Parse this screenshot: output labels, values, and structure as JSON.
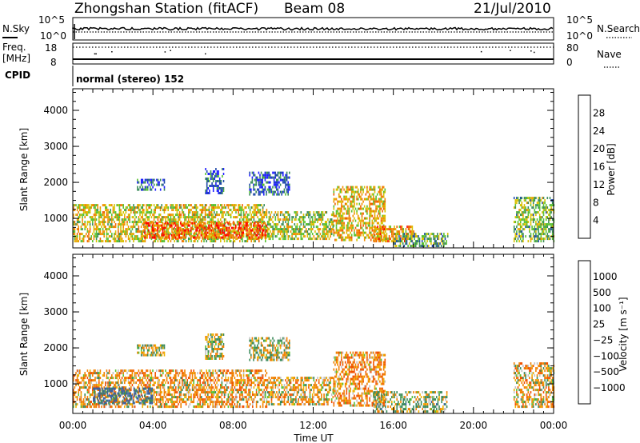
{
  "header": {
    "station": "Zhongshan Station (fitACF)",
    "beam": "Beam 08",
    "date": "21/Jul/2010"
  },
  "noise_panel": {
    "left_label": "N.Sky",
    "right_label": "N.Search",
    "left_ticks": [
      "10^5",
      "10^0"
    ],
    "right_ticks": [
      "10^5",
      "10^0"
    ]
  },
  "freq_panel": {
    "left_label_1": "Freq.",
    "left_label_2": "[MHz]",
    "right_label": "Nave",
    "left_ticks": [
      "18",
      "8"
    ],
    "right_ticks": [
      "80",
      "0"
    ]
  },
  "cpid": {
    "label": "CPID",
    "text": "normal (stereo) 152"
  },
  "power_panel": {
    "ylabel": "Slant Range [km]",
    "yticks": [
      "1000",
      "2000",
      "3000",
      "4000"
    ],
    "colorbar_label": "Power [dB]",
    "colorbar_ticks": [
      "4",
      "8",
      "12",
      "16",
      "20",
      "24",
      "28"
    ],
    "colorbar_colors": [
      "#2020ff",
      "#1e48a8",
      "#3a8a5a",
      "#58c030",
      "#d8c000",
      "#f09000",
      "#f06000",
      "#ff0000"
    ]
  },
  "velocity_panel": {
    "ylabel": "Slant Range [km]",
    "yticks": [
      "1000",
      "2000",
      "3000",
      "4000"
    ],
    "colorbar_label": "Velocity [m s⁻¹]",
    "colorbar_ticks": [
      "1000",
      "500",
      "100",
      "25",
      "−25",
      "−100",
      "−500",
      "−1000"
    ],
    "colorbar_colors": [
      "#2040c8",
      "#3a60a0",
      "#3a8a5a",
      "#58c030",
      "#c0c0c0",
      "#f0b000",
      "#f08000",
      "#f05000",
      "#ff0000"
    ]
  },
  "x_axis": {
    "label": "Time UT",
    "ticks": [
      "00:00",
      "04:00",
      "08:00",
      "12:00",
      "16:00",
      "20:00",
      "00:00"
    ]
  },
  "chart_data": [
    {
      "type": "heatmap",
      "panel": "power",
      "x_unit": "hours UT",
      "y_unit": "km",
      "xlim": [
        0,
        24
      ],
      "ylim": [
        180,
        4600
      ],
      "zlim": [
        0,
        32
      ],
      "regions": [
        {
          "t": [
            0.0,
            9.7
          ],
          "r": [
            400,
            1400
          ],
          "z": 18
        },
        {
          "t": [
            3.5,
            9.7
          ],
          "r": [
            450,
            900
          ],
          "z": 26
        },
        {
          "t": [
            9.7,
            13.0
          ],
          "r": [
            420,
            1200
          ],
          "z": 16
        },
        {
          "t": [
            13.0,
            15.6
          ],
          "r": [
            400,
            1900
          ],
          "z": 20
        },
        {
          "t": [
            15.0,
            17.0
          ],
          "r": [
            350,
            800
          ],
          "z": 22
        },
        {
          "t": [
            16.0,
            18.7
          ],
          "r": [
            250,
            600
          ],
          "z": 12
        },
        {
          "t": [
            3.2,
            4.6
          ],
          "r": [
            1800,
            2100
          ],
          "z": 6
        },
        {
          "t": [
            6.6,
            7.5
          ],
          "r": [
            1700,
            2400
          ],
          "z": 6
        },
        {
          "t": [
            8.8,
            10.8
          ],
          "r": [
            1700,
            2300
          ],
          "z": 6
        },
        {
          "t": [
            22.0,
            24.0
          ],
          "r": [
            400,
            1600
          ],
          "z": 14
        }
      ]
    },
    {
      "type": "heatmap",
      "panel": "velocity",
      "x_unit": "hours UT",
      "y_unit": "km",
      "xlim": [
        0,
        24
      ],
      "ylim": [
        180,
        4600
      ],
      "zlim": [
        -1000,
        1000
      ],
      "regions": [
        {
          "t": [
            0.0,
            9.7
          ],
          "r": [
            400,
            1400
          ],
          "z": -150
        },
        {
          "t": [
            1.0,
            4.0
          ],
          "r": [
            450,
            900
          ],
          "z": 400
        },
        {
          "t": [
            9.7,
            13.0
          ],
          "r": [
            420,
            1200
          ],
          "z": -100
        },
        {
          "t": [
            13.0,
            15.6
          ],
          "r": [
            400,
            1900
          ],
          "z": -200
        },
        {
          "t": [
            15.0,
            18.7
          ],
          "r": [
            250,
            800
          ],
          "z": 60
        },
        {
          "t": [
            3.2,
            4.6
          ],
          "r": [
            1800,
            2100
          ],
          "z": 0
        },
        {
          "t": [
            6.6,
            7.5
          ],
          "r": [
            1700,
            2400
          ],
          "z": 0
        },
        {
          "t": [
            8.8,
            10.8
          ],
          "r": [
            1700,
            2300
          ],
          "z": 0
        },
        {
          "t": [
            22.0,
            24.0
          ],
          "r": [
            400,
            1600
          ],
          "z": -120
        }
      ]
    }
  ]
}
